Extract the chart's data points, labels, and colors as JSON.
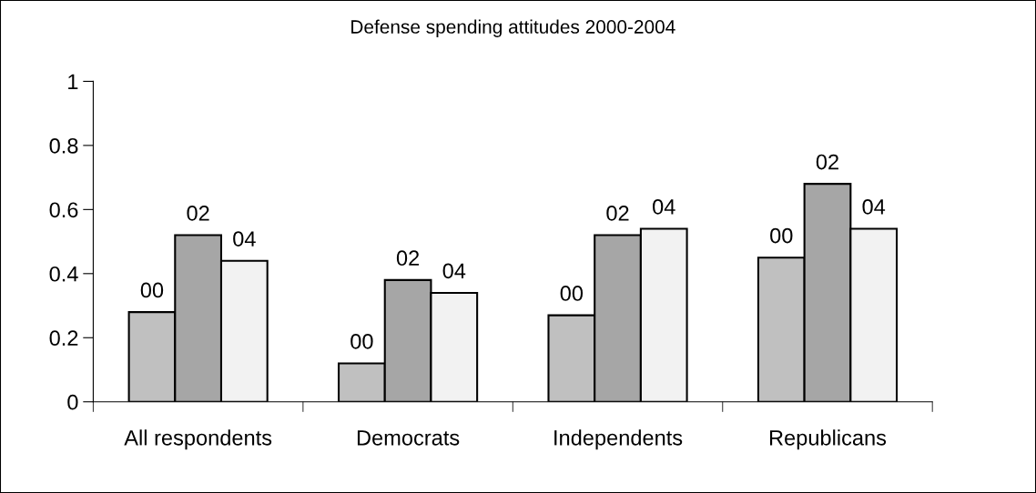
{
  "chart_data": {
    "type": "bar",
    "title": "Defense spending attitudes 2000-2004",
    "categories": [
      "All respondents",
      "Democrats",
      "Independents",
      "Republicans"
    ],
    "series": [
      {
        "name": "00",
        "color": "#c0c0c0",
        "values": [
          0.28,
          0.12,
          0.27,
          0.45
        ]
      },
      {
        "name": "02",
        "color": "#a6a6a6",
        "values": [
          0.52,
          0.38,
          0.52,
          0.68
        ]
      },
      {
        "name": "04",
        "color": "#f2f2f2",
        "values": [
          0.44,
          0.34,
          0.54,
          0.54
        ]
      }
    ],
    "ylim": [
      0,
      1
    ],
    "yticks": [
      0,
      0.2,
      0.4,
      0.6,
      0.8,
      1
    ],
    "grid": false,
    "legend": false
  }
}
